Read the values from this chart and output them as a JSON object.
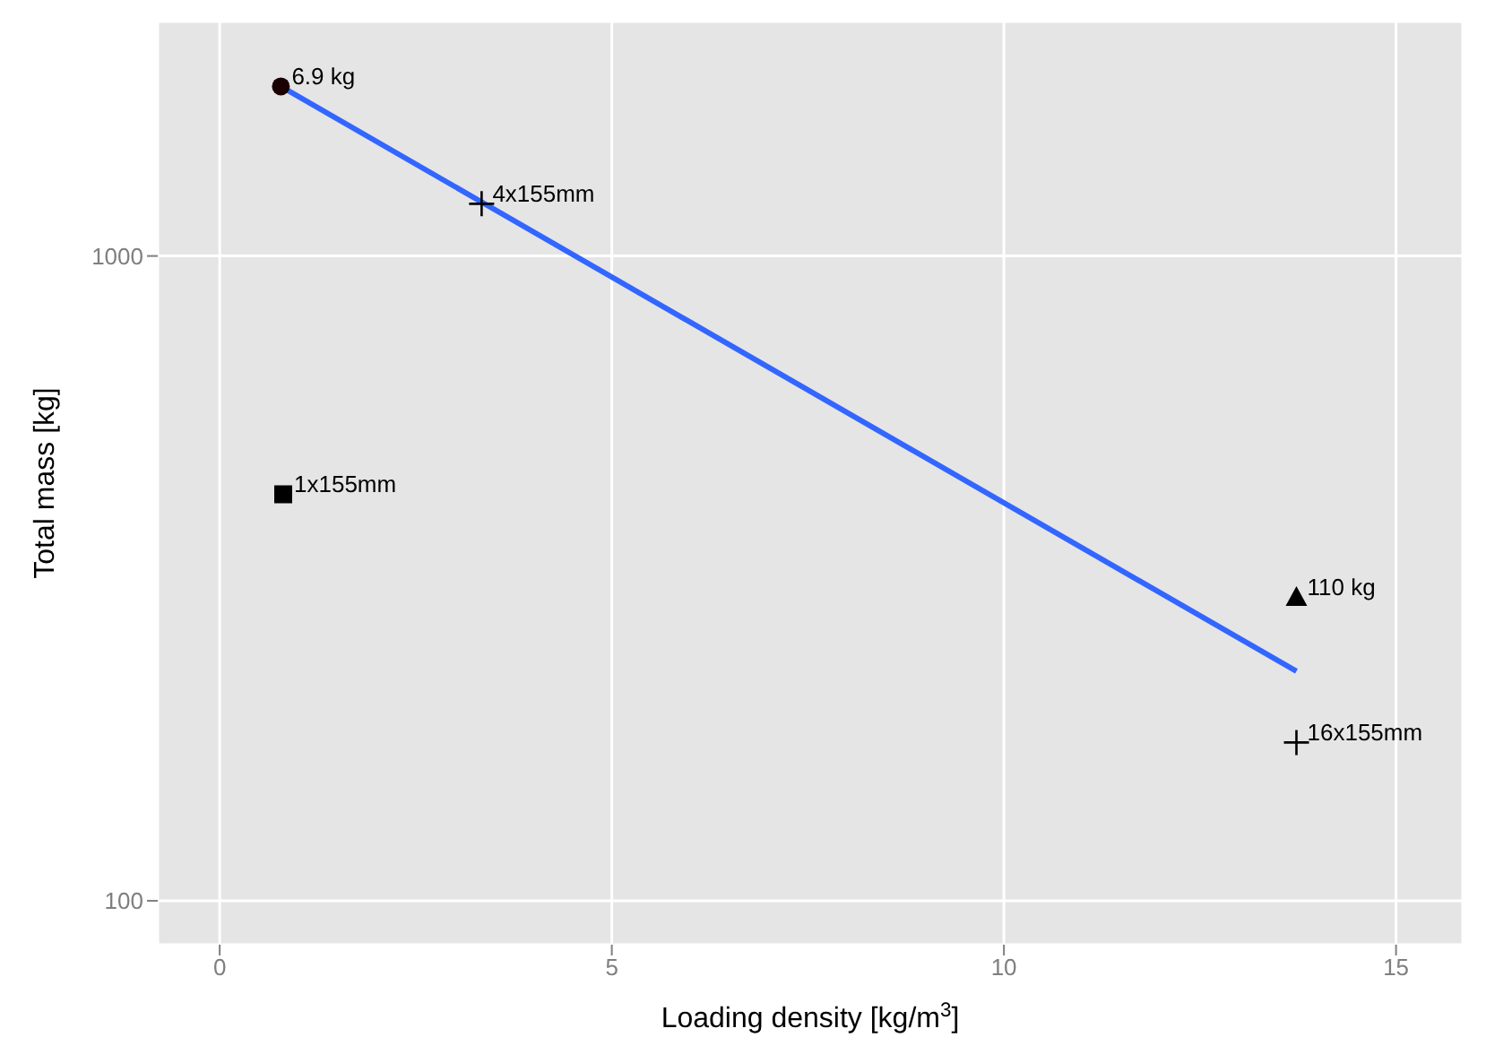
{
  "chart_data": {
    "type": "scatter",
    "xlabel": "Loading density [kg/m$^{3}$]",
    "ylabel": "Total mass [kg]",
    "log": "y",
    "grid": true,
    "legend": false,
    "xlim": [
      -0.79,
      15.85
    ],
    "xticks": [
      0,
      5,
      10,
      15
    ],
    "ylim": [
      85.5,
      2310
    ],
    "yticks": [
      100,
      1000
    ],
    "series": [
      {
        "name": "6.9 kg",
        "color": "#1a0000",
        "marker": "circle",
        "x": [
          0.78
        ],
        "values": [
          1832
        ]
      },
      {
        "name": "4x155mm",
        "color": "#000000",
        "marker": "cross",
        "x": [
          3.34
        ],
        "values": [
          1205
        ]
      },
      {
        "name": "1x155mm",
        "color": "#000000",
        "marker": "square",
        "x": [
          0.81
        ],
        "values": [
          427
        ]
      },
      {
        "name": "110 kg",
        "color": "#000000",
        "marker": "triangle",
        "x": [
          13.73
        ],
        "values": [
          296
        ]
      },
      {
        "name": "16x155mm",
        "color": "#000000",
        "marker": "cross",
        "x": [
          13.73
        ],
        "values": [
          176
        ]
      },
      {
        "type": "line",
        "color": "#3366ff",
        "marker": "none",
        "x": [
          0.78,
          13.73
        ],
        "values": [
          1832,
          227
        ]
      }
    ]
  }
}
